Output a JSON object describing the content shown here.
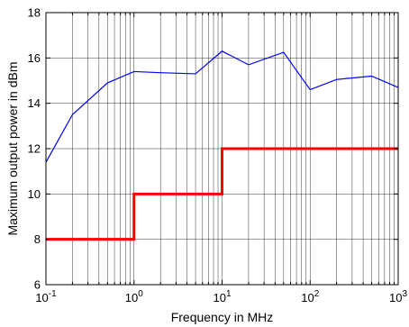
{
  "chart_data": {
    "type": "line",
    "xlabel": "Frequency in MHz",
    "ylabel": "Maximum output power in dBm",
    "xscale": "log",
    "xlim": [
      0.1,
      1000
    ],
    "ylim": [
      6,
      18
    ],
    "grid": true,
    "x_ticks": [
      {
        "value": 0.1,
        "base": "10",
        "exp": "-1"
      },
      {
        "value": 1,
        "base": "10",
        "exp": "0"
      },
      {
        "value": 10,
        "base": "10",
        "exp": "1"
      },
      {
        "value": 100,
        "base": "10",
        "exp": "2"
      },
      {
        "value": 1000,
        "base": "10",
        "exp": "3"
      }
    ],
    "y_ticks": [
      "6",
      "8",
      "10",
      "12",
      "14",
      "16",
      "18"
    ],
    "series": [
      {
        "color": "#0000ff",
        "x": [
          0.1,
          0.2,
          0.5,
          1,
          2,
          5,
          10,
          20,
          50,
          100,
          200,
          500,
          1000
        ],
        "y": [
          11.4,
          13.5,
          14.9,
          15.4,
          15.35,
          15.3,
          16.3,
          15.7,
          16.25,
          14.6,
          15.05,
          15.2,
          14.7
        ]
      },
      {
        "color": "#ff0000",
        "step": true,
        "x": [
          0.1,
          1,
          1,
          10,
          10,
          1000
        ],
        "y": [
          8,
          8,
          10,
          10,
          12,
          12
        ]
      }
    ]
  }
}
